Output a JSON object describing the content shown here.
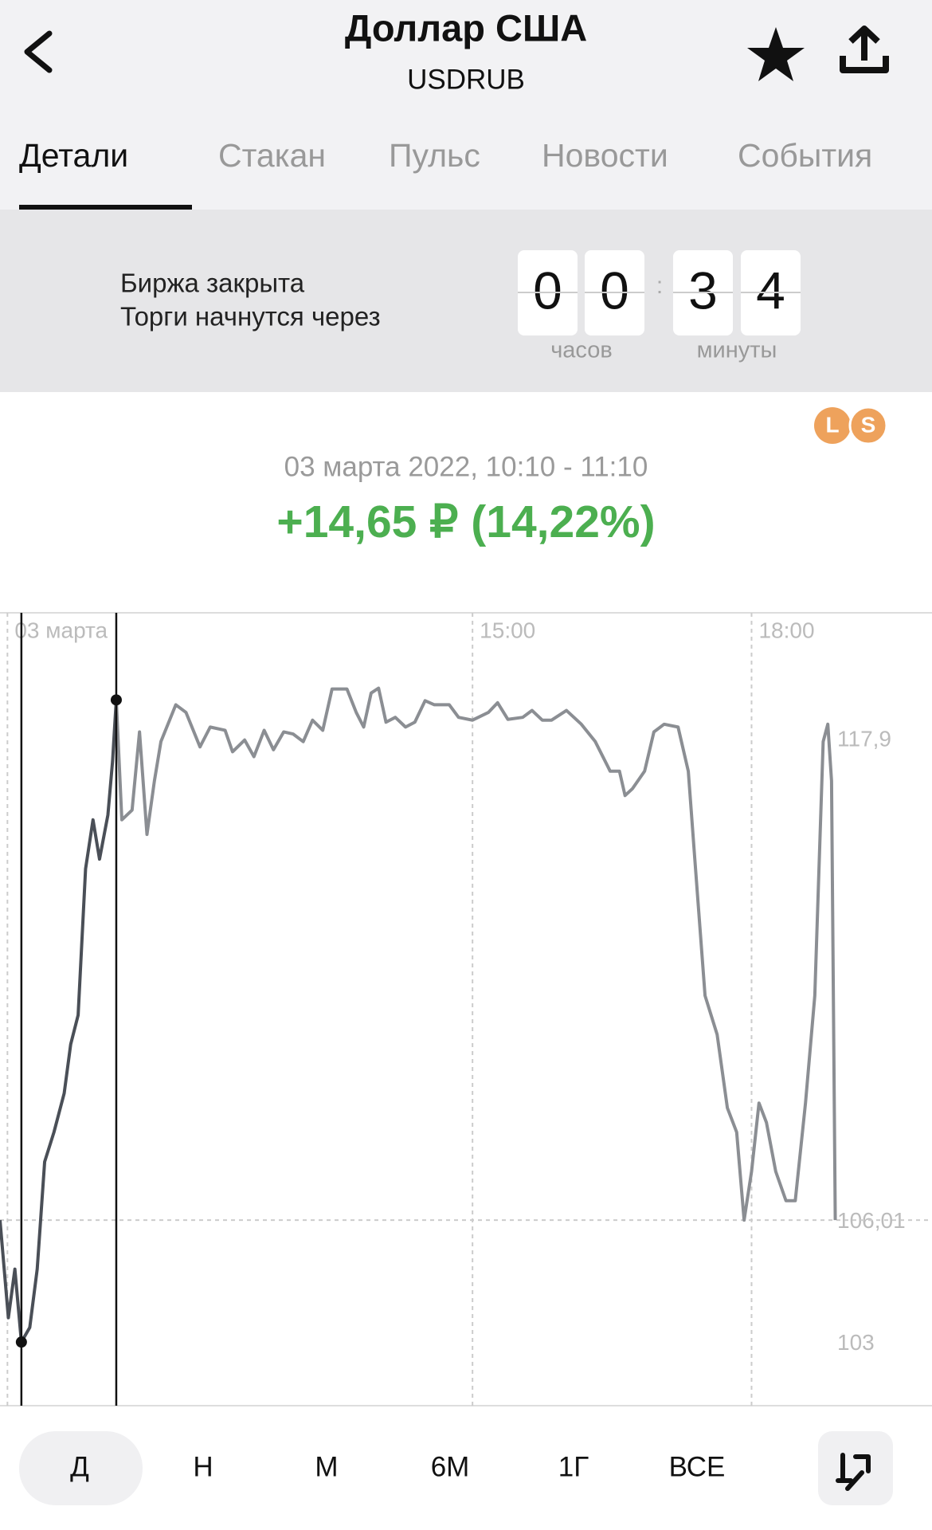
{
  "header": {
    "title": "Доллар США",
    "subtitle": "USDRUB"
  },
  "tabs": [
    "Детали",
    "Стакан",
    "Пульс",
    "Новости",
    "События"
  ],
  "status": {
    "line1": "Биржа закрыта",
    "line2": "Торги начнутся через",
    "digits": [
      "0",
      "0",
      "3",
      "4"
    ],
    "units": [
      "часов",
      "минуты"
    ]
  },
  "badges": [
    "L",
    "S"
  ],
  "summary": {
    "period": "03 марта 2022, 10:10 - 11:10",
    "change": "+14,65 ₽ (14,22%)"
  },
  "chart_data": {
    "type": "line",
    "x": [
      9.92,
      10.01,
      10.08,
      10.15,
      10.24,
      10.32,
      10.4,
      10.5,
      10.61,
      10.68,
      10.76,
      10.84,
      10.92,
      10.99,
      11.08,
      11.13,
      11.17,
      11.23,
      11.34,
      11.42,
      11.5,
      11.58,
      11.65,
      11.81,
      11.92,
      12.07,
      12.18,
      12.34,
      12.42,
      12.55,
      12.65,
      12.76,
      12.86,
      12.97,
      13.07,
      13.18,
      13.28,
      13.39,
      13.49,
      13.65,
      13.75,
      13.83,
      13.91,
      13.99,
      14.07,
      14.17,
      14.28,
      14.38,
      14.49,
      14.59,
      14.75,
      14.85,
      15.0,
      15.17,
      15.27,
      15.38,
      15.54,
      15.64,
      15.75,
      15.85,
      16.01,
      16.17,
      16.32,
      16.48,
      16.58,
      16.64,
      16.72,
      16.85,
      16.95,
      17.06,
      17.21,
      17.32,
      17.39,
      17.5,
      17.63,
      17.74,
      17.84,
      17.92,
      18.0,
      18.08,
      18.16,
      18.26,
      18.37,
      18.47,
      18.58,
      18.68,
      18.77,
      18.82,
      18.86,
      18.9
    ],
    "series": [
      {
        "color": "#8b8e93",
        "highlight_color": "#4a4f57",
        "values": [
          106.06,
          103.65,
          104.85,
          103.05,
          103.41,
          104.85,
          107.5,
          108.23,
          109.19,
          110.4,
          111.12,
          114.73,
          115.94,
          114.97,
          116.06,
          117.38,
          118.9,
          115.94,
          116.18,
          118.11,
          115.58,
          116.9,
          117.87,
          118.78,
          118.59,
          117.74,
          118.23,
          118.15,
          117.62,
          117.91,
          117.5,
          118.15,
          117.67,
          118.11,
          118.06,
          117.87,
          118.4,
          118.15,
          119.17,
          119.17,
          118.59,
          118.23,
          119.07,
          119.19,
          118.35,
          118.47,
          118.23,
          118.35,
          118.88,
          118.78,
          118.78,
          118.47,
          118.4,
          118.59,
          118.83,
          118.42,
          118.47,
          118.64,
          118.4,
          118.4,
          118.64,
          118.3,
          117.87,
          117.14,
          117.14,
          116.54,
          116.71,
          117.14,
          118.11,
          118.3,
          118.23,
          117.14,
          114.97,
          111.6,
          110.64,
          108.83,
          108.23,
          106.06,
          107.26,
          108.95,
          108.47,
          107.26,
          106.54,
          106.54,
          108.95,
          111.6,
          117.87,
          118.3,
          116.9,
          106.06
        ]
      }
    ],
    "selection_x": [
      10.15,
      11.17
    ],
    "xlim": [
      9.92,
      19.94
    ],
    "xticks": [
      {
        "value": 10,
        "label": "03 марта"
      },
      {
        "value": 15,
        "label": "15:00"
      },
      {
        "value": 18,
        "label": "18:00"
      }
    ],
    "ylim": [
      101.48,
      121.05
    ],
    "yticks": [
      {
        "value": 103,
        "label": "103"
      },
      {
        "value": 106.01,
        "label": "106,01"
      },
      {
        "value": 117.9,
        "label": "117,9"
      }
    ]
  },
  "periods": [
    "Д",
    "Н",
    "М",
    "6М",
    "1Г",
    "ВСЕ"
  ]
}
